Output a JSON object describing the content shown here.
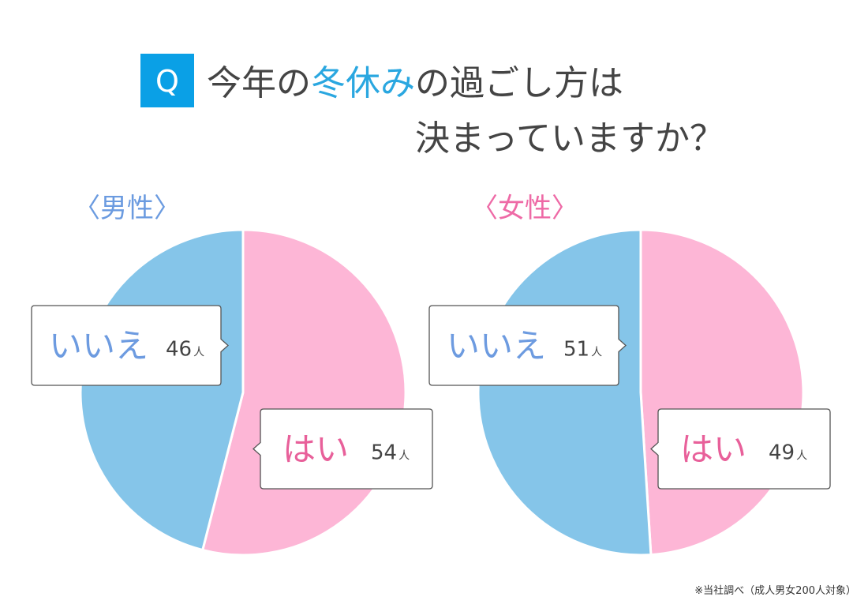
{
  "question": {
    "marker": "Q",
    "lines": [
      [
        "今年の",
        "冬休み",
        "の過ごし方は"
      ],
      [
        "決まっていますか？"
      ]
    ],
    "color": "#444444",
    "highlight_color": "#2aa7e0",
    "marker_color": "#0aa0e6"
  },
  "chart_data": [
    {
      "type": "pie",
      "label": "〈男性〉",
      "label_color": "#6b9be0",
      "categories": [
        "はい",
        "いいえ"
      ],
      "values": [
        54,
        46
      ],
      "unit": "人",
      "colors": [
        "#fdb6d6",
        "#85c5e9"
      ],
      "category_colors": [
        "#e8609a",
        "#6d9be0"
      ]
    },
    {
      "type": "pie",
      "label": "〈女性〉",
      "label_color": "#ee6aa6",
      "categories": [
        "はい",
        "いいえ"
      ],
      "values": [
        49,
        51
      ],
      "unit": "人",
      "colors": [
        "#fdb6d6",
        "#85c5e9"
      ],
      "category_colors": [
        "#e8609a",
        "#6d9be0"
      ]
    }
  ],
  "footnote": "※当社調べ（成人男女200人対象）"
}
